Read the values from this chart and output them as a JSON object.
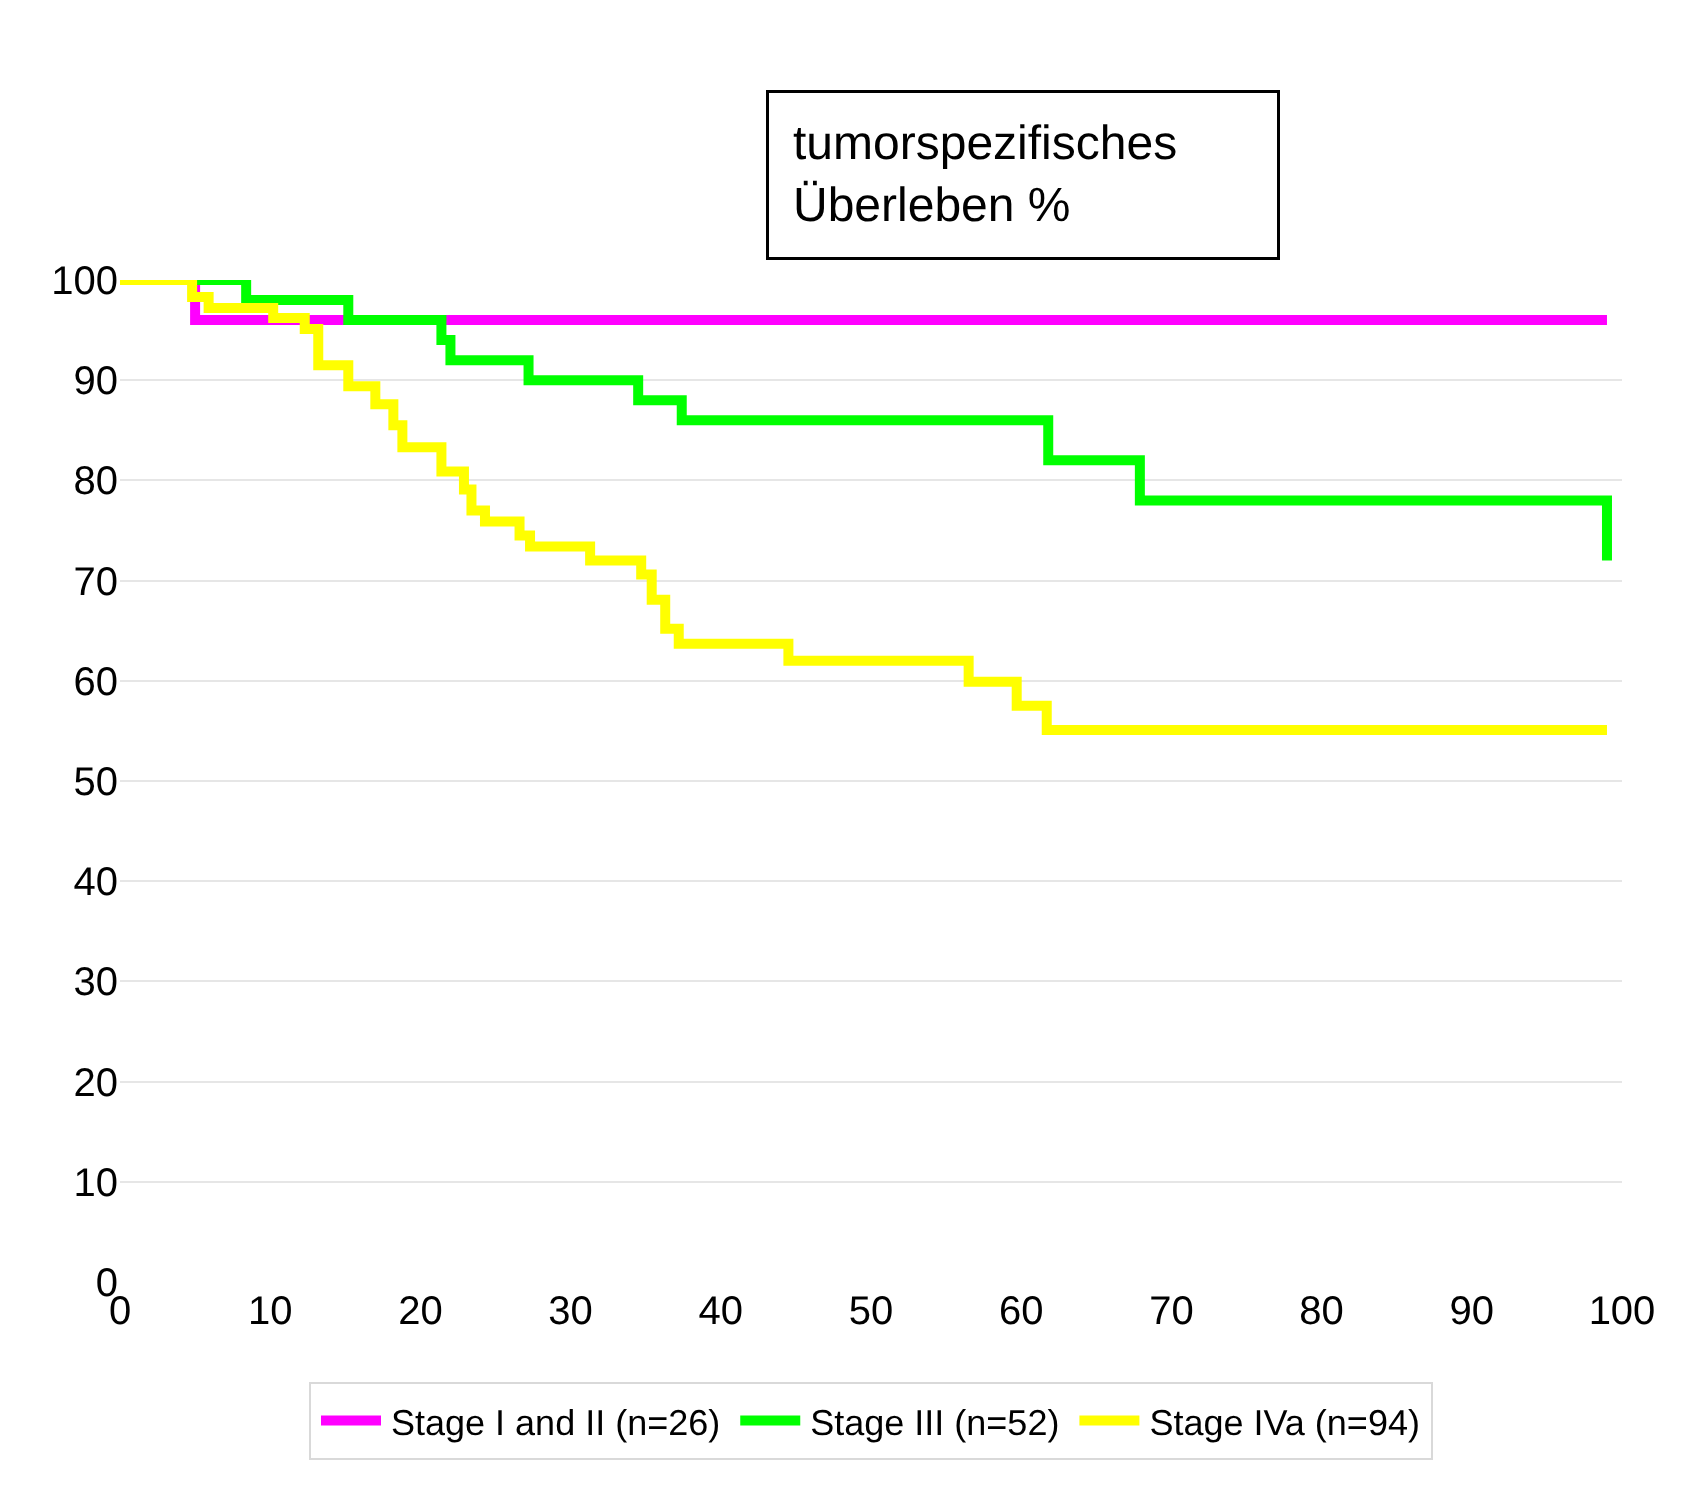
{
  "chart_data": {
    "type": "step",
    "title": "tumorspezifisches\nÜberleben %",
    "xlim": [
      0,
      100
    ],
    "xticks": [
      0,
      10,
      20,
      30,
      40,
      50,
      60,
      70,
      80,
      90,
      100
    ],
    "ylim": [
      0,
      100
    ],
    "yticks": [
      0,
      10,
      20,
      30,
      40,
      50,
      60,
      70,
      80,
      90,
      100
    ],
    "grid": "y",
    "legend": "bottom",
    "marker": "none",
    "line_style": "solid",
    "series": [
      {
        "name": "Stage I and II (n=26)",
        "color": "#ff00ff",
        "x": [
          0,
          5,
          99
        ],
        "values": [
          100,
          96,
          96
        ]
      },
      {
        "name": "Stage III (n=52)",
        "color": "#00ff00",
        "x": [
          0,
          8.4,
          15.2,
          21.4,
          22,
          27.2,
          34.5,
          37.4,
          61.8,
          67.9,
          99,
          99
        ],
        "values": [
          100,
          98,
          96,
          94,
          92,
          90,
          88,
          86,
          82,
          78,
          78,
          72
        ]
      },
      {
        "name": "Stage IVa (n=94)",
        "color": "#ffff00",
        "x": [
          0,
          4.8,
          5.9,
          10.2,
          12.3,
          13.2,
          15.2,
          17.0,
          18.2,
          18.8,
          21.4,
          22.9,
          23.4,
          24.3,
          26.6,
          27.3,
          31.3,
          34.7,
          35.4,
          36.3,
          37.2,
          44.5,
          56.5,
          59.7,
          61.7,
          99
        ],
        "values": [
          100,
          98.3,
          97.2,
          96.2,
          95.1,
          91.5,
          89.4,
          87.6,
          85.5,
          83.3,
          80.9,
          79.1,
          77.0,
          75.9,
          74.5,
          73.4,
          72.0,
          70.6,
          68.1,
          65.2,
          63.7,
          62.0,
          59.9,
          57.5,
          55.1,
          55.1
        ]
      }
    ]
  }
}
